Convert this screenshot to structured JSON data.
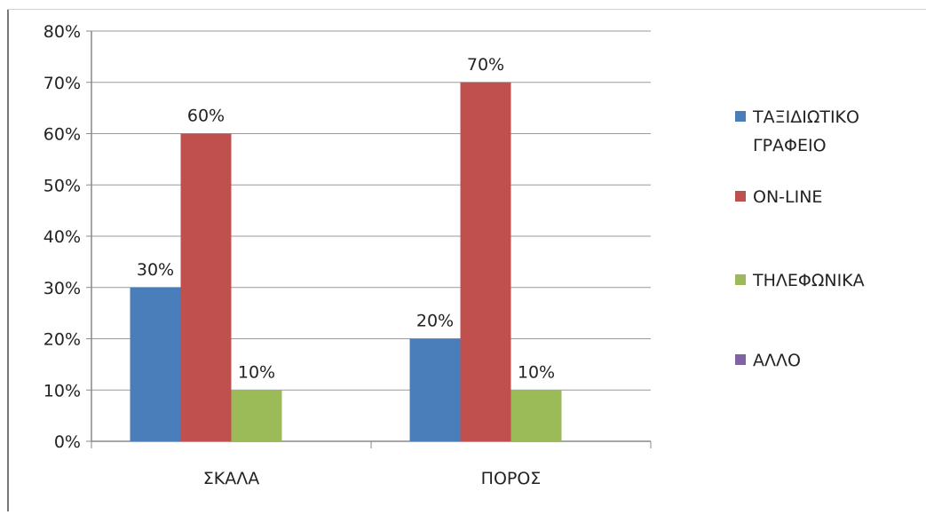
{
  "chart_data": {
    "type": "bar",
    "title": "",
    "xlabel": "",
    "ylabel": "",
    "ylim": [
      0,
      80
    ],
    "ytick_labels": [
      "0%",
      "10%",
      "20%",
      "30%",
      "40%",
      "50%",
      "60%",
      "70%",
      "80%"
    ],
    "categories": [
      "ΣΚΑΛΑ",
      "ΠΟΡΟΣ"
    ],
    "grid": true,
    "legend_position": "right",
    "series": [
      {
        "name": "ΤΑΞΙΔΙΩΤΙΚΟ ΓΡΑΦΕΙΟ",
        "legend_lines": [
          "ΤΑΞΙΔΙΩΤΙΚΟ",
          "ΓΡΑΦΕΙΟ"
        ],
        "color": "#4a7ebb",
        "values": [
          30,
          20
        ],
        "labels": [
          "30%",
          "20%"
        ]
      },
      {
        "name": "ON-LINE",
        "legend_lines": [
          "ON-LINE"
        ],
        "color": "#c0504d",
        "values": [
          60,
          70
        ],
        "labels": [
          "60%",
          "70%"
        ]
      },
      {
        "name": "ΤΗΛΕΦΩΝΙΚΑ",
        "legend_lines": [
          "ΤΗΛΕΦΩΝΙΚΑ"
        ],
        "color": "#9bbb59",
        "values": [
          10,
          10
        ],
        "labels": [
          "10%",
          "10%"
        ]
      },
      {
        "name": "ΑΛΛΟ",
        "legend_lines": [
          "ΑΛΛΟ"
        ],
        "color": "#8064a2",
        "values": [
          0,
          0
        ],
        "labels": [
          "",
          ""
        ]
      }
    ]
  }
}
